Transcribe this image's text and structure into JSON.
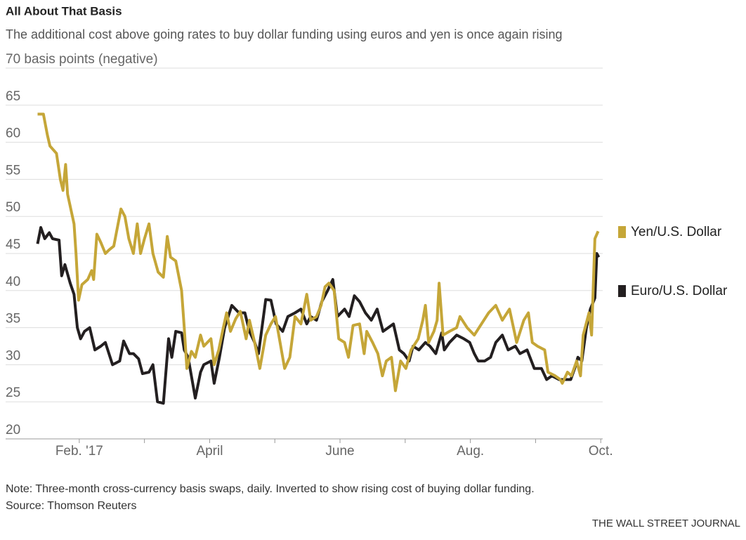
{
  "chart_data": {
    "type": "line",
    "title": "All About That Basis",
    "subtitle": "The additional cost above going rates to buy dollar funding using euros and yen is once again rising",
    "note": "Note: Three-month cross-currency basis swaps, daily. Inverted to show rising cost of buying dollar funding.",
    "source": "Source: Thomson Reuters",
    "credit": "THE WALL STREET JOURNAL",
    "xlim": [
      0.87,
      10.03
    ],
    "xticks": [
      {
        "value": 2,
        "label": "Feb. '17"
      },
      {
        "value": 4,
        "label": "April"
      },
      {
        "value": 6,
        "label": "June"
      },
      {
        "value": 8,
        "label": "Aug."
      },
      {
        "value": 10,
        "label": "Oct."
      }
    ],
    "xminorticks": [
      3,
      5,
      7,
      9
    ],
    "ylim": [
      20,
      70
    ],
    "yticks": [
      20,
      25,
      30,
      35,
      40,
      45,
      50,
      55,
      60,
      65,
      {
        "value": 70,
        "label": "70 basis points (negative)"
      }
    ],
    "grid": true,
    "series": [
      {
        "name": "Yen/U.S. Dollar",
        "color": "#c5a638",
        "x": [
          1.36,
          1.45,
          1.51,
          1.55,
          1.65,
          1.71,
          1.75,
          1.79,
          1.82,
          1.92,
          1.95,
          1.99,
          2.04,
          2.13,
          2.19,
          2.22,
          2.27,
          2.33,
          2.4,
          2.46,
          2.53,
          2.64,
          2.7,
          2.76,
          2.83,
          2.89,
          2.94,
          3.0,
          3.07,
          3.13,
          3.21,
          3.29,
          3.35,
          3.4,
          3.48,
          3.57,
          3.61,
          3.65,
          3.72,
          3.78,
          3.86,
          3.91,
          4.02,
          4.07,
          4.14,
          4.21,
          4.26,
          4.32,
          4.4,
          4.47,
          4.56,
          4.61,
          4.69,
          4.77,
          4.86,
          4.94,
          5.01,
          5.08,
          5.15,
          5.23,
          5.31,
          5.4,
          5.49,
          5.55,
          5.64,
          5.71,
          5.77,
          5.83,
          5.91,
          5.98,
          6.07,
          6.13,
          6.2,
          6.3,
          6.37,
          6.41,
          6.5,
          6.58,
          6.65,
          6.71,
          6.79,
          6.85,
          6.93,
          7.01,
          7.09,
          7.2,
          7.27,
          7.31,
          7.36,
          7.44,
          7.49,
          7.52,
          7.58,
          7.68,
          7.79,
          7.84,
          7.95,
          8.06,
          8.17,
          8.28,
          8.39,
          8.49,
          8.6,
          8.71,
          8.82,
          8.89,
          8.95,
          9.03,
          9.14,
          9.19,
          9.3,
          9.38,
          9.41,
          9.49,
          9.55,
          9.63,
          9.69,
          9.73,
          9.82,
          9.86,
          9.91,
          9.96
        ],
        "values": [
          63.8,
          63.8,
          61,
          59.5,
          58.5,
          55,
          53.5,
          57,
          53,
          49,
          45,
          38.7,
          40.8,
          41.5,
          42.7,
          41.5,
          47.6,
          46.5,
          45,
          45.5,
          46,
          51,
          50,
          47,
          45,
          49,
          45,
          47,
          49,
          45,
          42.5,
          41.8,
          47.3,
          44.5,
          44,
          40,
          35,
          29.5,
          31.8,
          31,
          34,
          32.5,
          33.5,
          30,
          32,
          35,
          37,
          34.5,
          36.2,
          37.2,
          33.5,
          36,
          33,
          29.5,
          34,
          35.5,
          36.5,
          33,
          29.5,
          31,
          36.5,
          35.5,
          39.5,
          36,
          36.5,
          38,
          40.5,
          41,
          40,
          33.5,
          33,
          31,
          35.3,
          35.5,
          31.5,
          34.5,
          33,
          31.5,
          28.5,
          30.5,
          31,
          26.5,
          30.5,
          29.5,
          32,
          33.5,
          36,
          38,
          33,
          34.5,
          36,
          41,
          34,
          34.5,
          35,
          36.5,
          35,
          34,
          35.5,
          37,
          38,
          36,
          37.5,
          33,
          36,
          37,
          33,
          32.5,
          32,
          29,
          28.5,
          28,
          27.5,
          29,
          28.5,
          30.5,
          28.5,
          34,
          37,
          34,
          47,
          48
        ]
      },
      {
        "name": "Euro/U.S. Dollar",
        "color": "#231f20",
        "x": [
          1.36,
          1.41,
          1.47,
          1.54,
          1.59,
          1.69,
          1.73,
          1.78,
          1.86,
          1.92,
          1.97,
          2.02,
          2.08,
          2.16,
          2.24,
          2.33,
          2.4,
          2.51,
          2.62,
          2.68,
          2.77,
          2.83,
          2.91,
          2.97,
          3.07,
          3.13,
          3.2,
          3.29,
          3.37,
          3.42,
          3.48,
          3.57,
          3.61,
          3.67,
          3.78,
          3.86,
          3.91,
          4.02,
          4.07,
          4.15,
          4.23,
          4.34,
          4.45,
          4.54,
          4.61,
          4.69,
          4.75,
          4.86,
          4.94,
          5.02,
          5.12,
          5.2,
          5.31,
          5.4,
          5.49,
          5.55,
          5.64,
          5.72,
          5.81,
          5.89,
          5.96,
          6.07,
          6.14,
          6.22,
          6.3,
          6.39,
          6.48,
          6.57,
          6.66,
          6.74,
          6.82,
          6.91,
          6.98,
          7.06,
          7.12,
          7.21,
          7.31,
          7.38,
          7.47,
          7.56,
          7.6,
          7.68,
          7.79,
          7.9,
          7.99,
          8.06,
          8.12,
          8.22,
          8.31,
          8.39,
          8.49,
          8.58,
          8.69,
          8.76,
          8.87,
          8.98,
          9.09,
          9.17,
          9.25,
          9.36,
          9.46,
          9.54,
          9.6,
          9.65,
          9.71,
          9.78,
          9.84,
          9.91,
          9.94,
          9.97
        ],
        "values": [
          46.3,
          48.5,
          47,
          47.8,
          47,
          46.8,
          42,
          43.5,
          41,
          39.5,
          35,
          33.5,
          34.5,
          35,
          32,
          32.5,
          33,
          30,
          30.5,
          33.2,
          31.5,
          31.5,
          30.8,
          28.8,
          29,
          30,
          25,
          24.8,
          33.5,
          31,
          34.5,
          34.3,
          32,
          31,
          25.5,
          29,
          30,
          30.5,
          27.5,
          31,
          35,
          38,
          37,
          37,
          34.5,
          33,
          31.5,
          38.8,
          38.7,
          35.5,
          34.5,
          36.5,
          37,
          37.5,
          35.5,
          36.5,
          36,
          38.5,
          40,
          41.5,
          36.5,
          37.5,
          36.5,
          39.3,
          38.5,
          37,
          36,
          37.5,
          34.5,
          35,
          35.5,
          32,
          31.5,
          30.5,
          32.5,
          32,
          33,
          32.5,
          31.5,
          34.3,
          32,
          33,
          34,
          33.5,
          33,
          31.5,
          30.5,
          30.5,
          31,
          33,
          34,
          32,
          32.5,
          31.5,
          32,
          29.5,
          29.5,
          28,
          28.5,
          28,
          28,
          28,
          29.5,
          31,
          30.5,
          35,
          37.5,
          39,
          45,
          44.5
        ]
      }
    ]
  }
}
